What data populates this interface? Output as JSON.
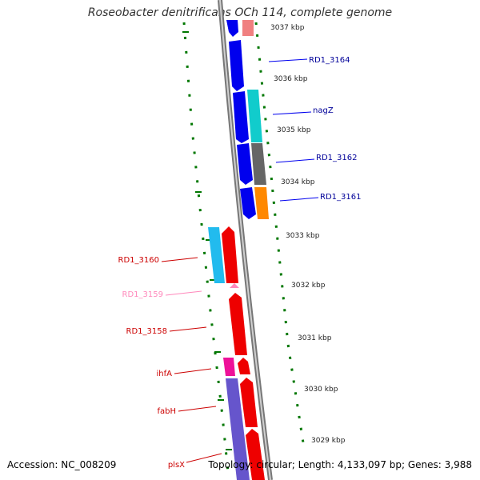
{
  "title": "Roseobacter denitrificans OCh 114, complete genome",
  "accession": "Accession: NC_008209",
  "summary": "Topology: circular; Length: 4,133,097 bp; Genes: 3,988",
  "colors": {
    "forward_cds": "#0000ee",
    "reverse_cds": "#ee0000",
    "backbone": "#888888",
    "tick": "#007700",
    "forward_label": "#000099",
    "reverse_label": "#cc0000",
    "rna_label": "#ff88bb"
  },
  "scale_ticks": [
    "3037 kbp",
    "3036 kbp",
    "3035 kbp",
    "3034 kbp",
    "3033 kbp",
    "3032 kbp",
    "3031 kbp",
    "3030 kbp",
    "3029 kbp"
  ],
  "forward_labels": [
    "RD1_3164",
    "nagZ",
    "RD1_3162",
    "RD1_3161"
  ],
  "reverse_labels": [
    "RD1_3160",
    "RD1_3159",
    "RD1_3158",
    "ihfA",
    "fabH",
    "plsX"
  ]
}
